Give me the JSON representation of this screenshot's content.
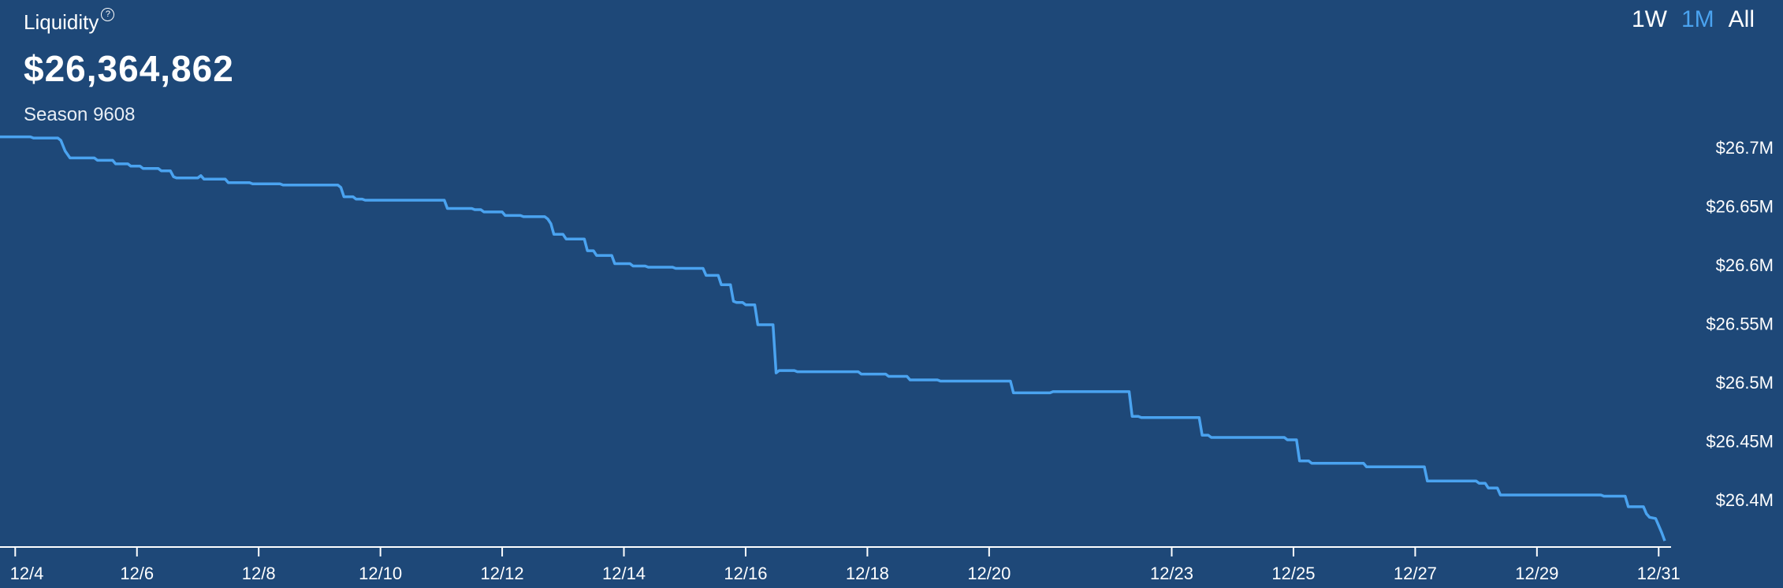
{
  "header": {
    "title": "Liquidity",
    "help_icon": "help-circle-icon",
    "value": "$26,364,862",
    "season": "Season 9608"
  },
  "range_tabs": [
    {
      "label": "1W",
      "active": false
    },
    {
      "label": "1M",
      "active": true
    },
    {
      "label": "All",
      "active": false
    }
  ],
  "colors": {
    "background": "#1e4878",
    "line": "#4aa3f0",
    "active_tab": "#4aa3f0"
  },
  "chart_data": {
    "type": "line",
    "title": "Liquidity",
    "x_ticks": [
      "12/4",
      "12/6",
      "12/8",
      "12/10",
      "12/12",
      "12/14",
      "12/16",
      "12/18",
      "12/20",
      "12/23",
      "12/25",
      "12/27",
      "12/29",
      "12/31"
    ],
    "y_ticks": [
      "$26.4M",
      "$26.45M",
      "$26.5M",
      "$26.55M",
      "$26.6M",
      "$26.65M",
      "$26.7M"
    ],
    "y_tick_values": [
      26.4,
      26.45,
      26.5,
      26.55,
      26.6,
      26.65,
      26.7
    ],
    "ylim": [
      26.36,
      26.714
    ],
    "x_range": [
      3.75,
      31.1
    ],
    "series": [
      {
        "values": [
          [
            3.75,
            26.709
          ],
          [
            4.25,
            26.709
          ],
          [
            4.3,
            26.708
          ],
          [
            4.7,
            26.708
          ],
          [
            4.75,
            26.706
          ],
          [
            4.82,
            26.697
          ],
          [
            4.9,
            26.691
          ],
          [
            5.3,
            26.691
          ],
          [
            5.35,
            26.689
          ],
          [
            5.6,
            26.689
          ],
          [
            5.65,
            26.686
          ],
          [
            5.85,
            26.686
          ],
          [
            5.9,
            26.684
          ],
          [
            6.05,
            26.684
          ],
          [
            6.1,
            26.682
          ],
          [
            6.35,
            26.682
          ],
          [
            6.4,
            26.68
          ],
          [
            6.55,
            26.68
          ],
          [
            6.6,
            26.675
          ],
          [
            6.65,
            26.674
          ],
          [
            7.0,
            26.674
          ],
          [
            7.05,
            26.676
          ],
          [
            7.1,
            26.673
          ],
          [
            7.45,
            26.673
          ],
          [
            7.5,
            26.67
          ],
          [
            7.85,
            26.67
          ],
          [
            7.9,
            26.669
          ],
          [
            8.35,
            26.669
          ],
          [
            8.4,
            26.668
          ],
          [
            9.3,
            26.668
          ],
          [
            9.35,
            26.666
          ],
          [
            9.4,
            26.658
          ],
          [
            9.55,
            26.658
          ],
          [
            9.6,
            26.656
          ],
          [
            9.7,
            26.656
          ],
          [
            9.75,
            26.655
          ],
          [
            11.05,
            26.655
          ],
          [
            11.1,
            26.648
          ],
          [
            11.5,
            26.648
          ],
          [
            11.55,
            26.647
          ],
          [
            11.65,
            26.647
          ],
          [
            11.7,
            26.645
          ],
          [
            12.0,
            26.645
          ],
          [
            12.05,
            26.642
          ],
          [
            12.3,
            26.642
          ],
          [
            12.35,
            26.641
          ],
          [
            12.7,
            26.641
          ],
          [
            12.75,
            26.639
          ],
          [
            12.8,
            26.635
          ],
          [
            12.85,
            26.626
          ],
          [
            13.0,
            26.626
          ],
          [
            13.05,
            26.622
          ],
          [
            13.35,
            26.622
          ],
          [
            13.4,
            26.612
          ],
          [
            13.5,
            26.612
          ],
          [
            13.55,
            26.608
          ],
          [
            13.8,
            26.608
          ],
          [
            13.85,
            26.601
          ],
          [
            14.1,
            26.601
          ],
          [
            14.15,
            26.599
          ],
          [
            14.35,
            26.599
          ],
          [
            14.4,
            26.598
          ],
          [
            14.8,
            26.598
          ],
          [
            14.85,
            26.597
          ],
          [
            15.3,
            26.597
          ],
          [
            15.35,
            26.591
          ],
          [
            15.55,
            26.591
          ],
          [
            15.6,
            26.583
          ],
          [
            15.75,
            26.583
          ],
          [
            15.8,
            26.569
          ],
          [
            15.85,
            26.568
          ],
          [
            15.95,
            26.568
          ],
          [
            16.0,
            26.566
          ],
          [
            16.15,
            26.566
          ],
          [
            16.2,
            26.549
          ],
          [
            16.45,
            26.549
          ],
          [
            16.5,
            26.508
          ],
          [
            16.55,
            26.51
          ],
          [
            16.8,
            26.51
          ],
          [
            16.85,
            26.509
          ],
          [
            17.85,
            26.509
          ],
          [
            17.9,
            26.507
          ],
          [
            18.3,
            26.507
          ],
          [
            18.35,
            26.505
          ],
          [
            18.65,
            26.505
          ],
          [
            18.7,
            26.502
          ],
          [
            19.15,
            26.502
          ],
          [
            19.2,
            26.501
          ],
          [
            20.35,
            26.501
          ],
          [
            20.4,
            26.491
          ],
          [
            21.0,
            26.491
          ],
          [
            21.05,
            26.492
          ],
          [
            22.3,
            26.492
          ],
          [
            22.35,
            26.471
          ],
          [
            22.45,
            26.471
          ],
          [
            22.5,
            26.47
          ],
          [
            23.45,
            26.47
          ],
          [
            23.5,
            26.455
          ],
          [
            23.6,
            26.455
          ],
          [
            23.65,
            26.453
          ],
          [
            24.85,
            26.453
          ],
          [
            24.9,
            26.451
          ],
          [
            25.05,
            26.451
          ],
          [
            25.1,
            26.433
          ],
          [
            25.25,
            26.433
          ],
          [
            25.3,
            26.431
          ],
          [
            26.15,
            26.431
          ],
          [
            26.2,
            26.428
          ],
          [
            27.15,
            26.428
          ],
          [
            27.2,
            26.416
          ],
          [
            28.0,
            26.416
          ],
          [
            28.05,
            26.414
          ],
          [
            28.15,
            26.414
          ],
          [
            28.2,
            26.41
          ],
          [
            28.35,
            26.41
          ],
          [
            28.4,
            26.404
          ],
          [
            30.05,
            26.404
          ],
          [
            30.1,
            26.403
          ],
          [
            30.45,
            26.403
          ],
          [
            30.5,
            26.394
          ],
          [
            30.75,
            26.394
          ],
          [
            30.8,
            26.388
          ],
          [
            30.85,
            26.385
          ],
          [
            30.95,
            26.384
          ],
          [
            31.0,
            26.378
          ],
          [
            31.05,
            26.372
          ],
          [
            31.1,
            26.365
          ]
        ]
      }
    ]
  }
}
